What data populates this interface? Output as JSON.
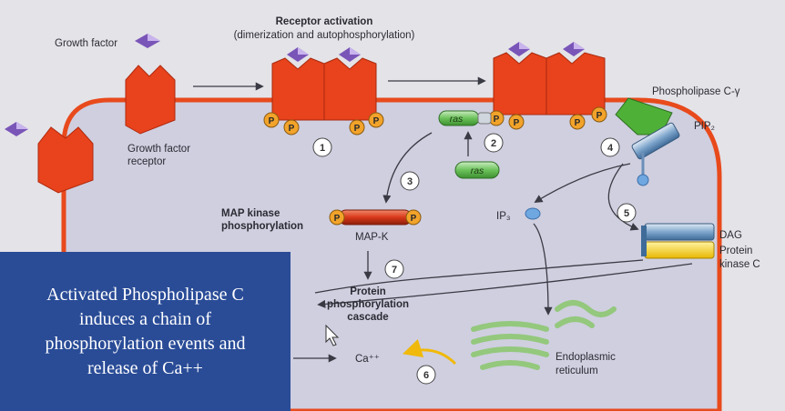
{
  "labels": {
    "growth_factor": "Growth factor",
    "receptor_activation": "Receptor activation",
    "receptor_activation_sub": "(dimerization and autophosphorylation)",
    "growth_factor_receptor_1": "Growth factor",
    "growth_factor_receptor_2": "receptor",
    "phospholipase": "Phospholipase C-γ",
    "pip2": "PIP₂",
    "ras": "ras",
    "ras_free": "ras",
    "map_kinase_1": "MAP kinase",
    "map_kinase_2": "phosphorylation",
    "map_k": "MAP-K",
    "ip3": "IP₃",
    "dag": "DAG",
    "pkc_1": "Protein",
    "pkc_2": "kinase C",
    "cascade_1": "Protein",
    "cascade_2": "phosphorylation",
    "cascade_3": "cascade",
    "ca": "Ca⁺⁺",
    "er_1": "Endoplasmic",
    "er_2": "reticulum",
    "p": "P"
  },
  "steps": [
    "1",
    "2",
    "3",
    "4",
    "5",
    "6",
    "7"
  ],
  "caption": [
    "Activated Phospholipase C",
    "induces a chain of",
    "phosphorylation events and",
    "release of Ca++"
  ],
  "colors": {
    "receptor": "#e8431c",
    "ligand": "#7a55b8",
    "phospho": "#f2a32a",
    "ras": "#59b04a",
    "plc": "#4fb037",
    "caption_bg": "#2a4c97"
  }
}
